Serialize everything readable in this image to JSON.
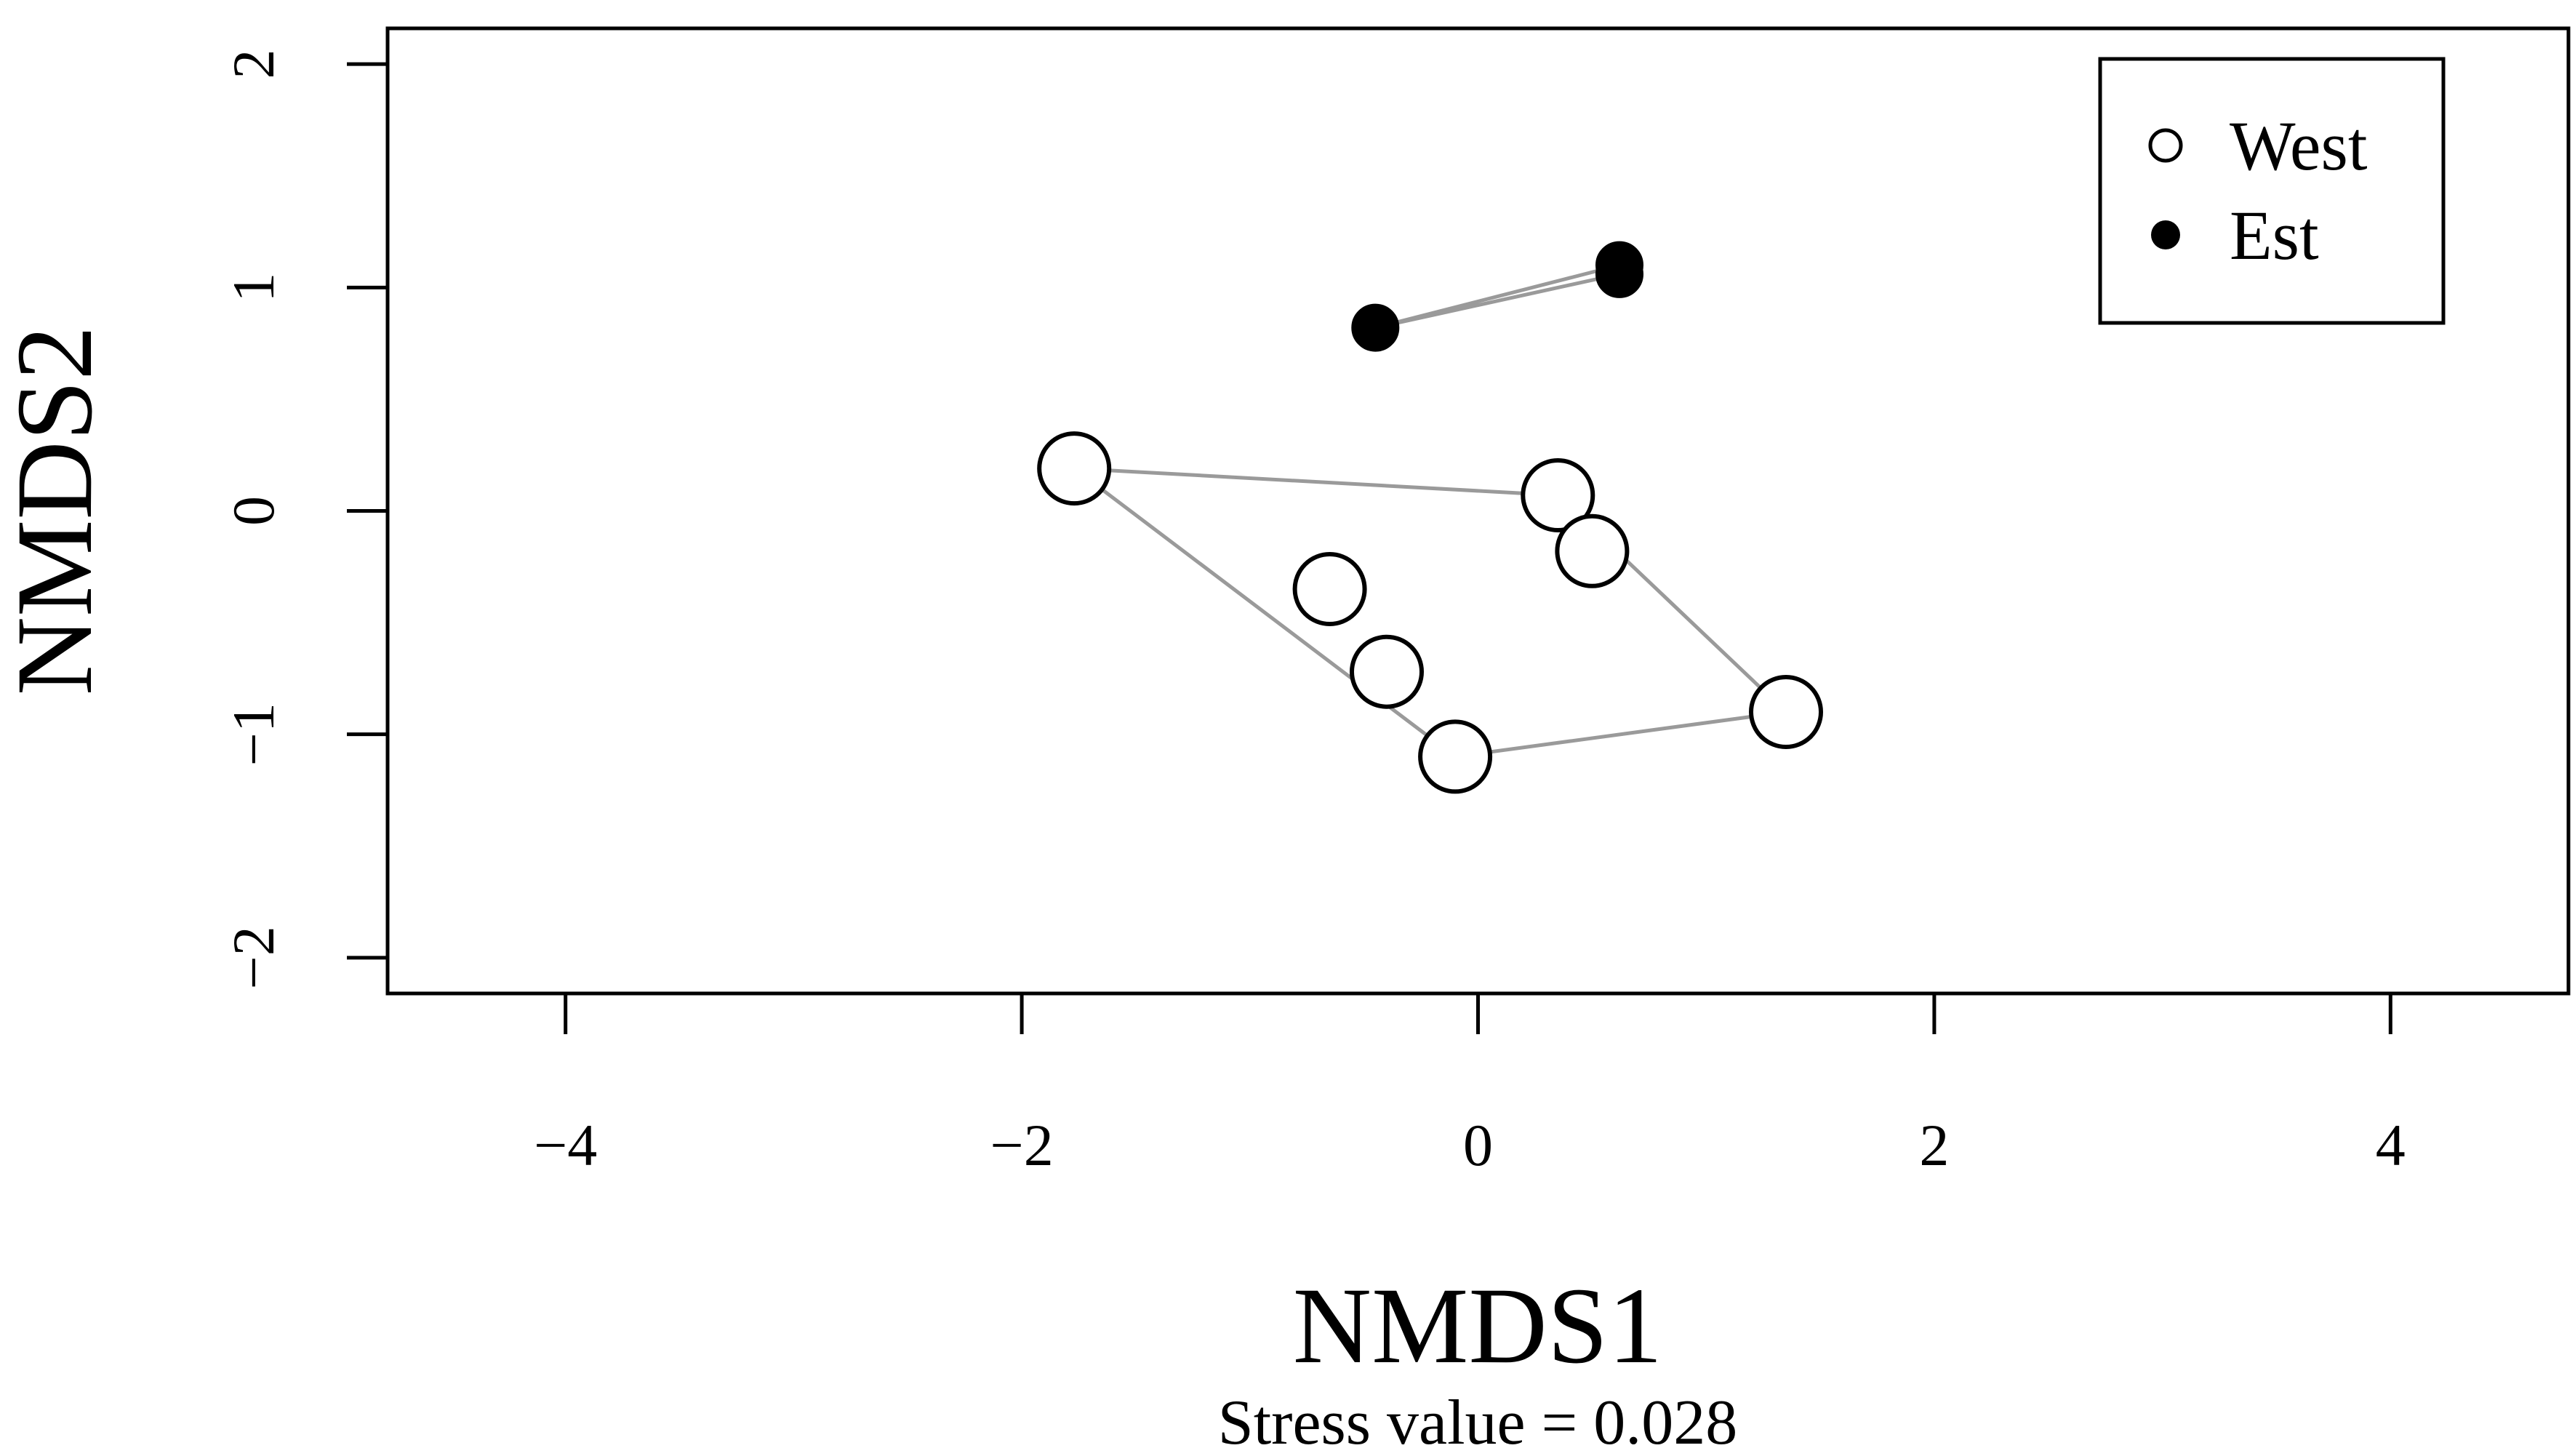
{
  "chart_data": {
    "type": "scatter",
    "xlabel": "NMDS1",
    "ylabel": "NMDS2",
    "subtitle": "Stress value = 0.028",
    "xlim": [
      -4.78,
      4.78
    ],
    "ylim": [
      -2.16,
      2.16
    ],
    "x_ticks": [
      -4,
      -2,
      0,
      2,
      4
    ],
    "y_ticks": [
      -2,
      -1,
      0,
      1,
      2
    ],
    "x_tick_labels": [
      "−4",
      "−2",
      "0",
      "2",
      "4"
    ],
    "y_tick_labels": [
      "−2",
      "−1",
      "0",
      "1",
      "2"
    ],
    "grid": false,
    "legend": {
      "position": "top-right",
      "entries": [
        {
          "label": "West",
          "marker": "open-circle"
        },
        {
          "label": "Est",
          "marker": "filled-circle"
        }
      ]
    },
    "series": [
      {
        "name": "West",
        "marker": "open-circle",
        "points": [
          {
            "x": -1.77,
            "y": 0.19
          },
          {
            "x": 0.35,
            "y": 0.07
          },
          {
            "x": 0.5,
            "y": -0.18
          },
          {
            "x": -0.65,
            "y": -0.35
          },
          {
            "x": -0.4,
            "y": -0.72
          },
          {
            "x": -0.1,
            "y": -1.1
          },
          {
            "x": 1.35,
            "y": -0.9
          }
        ],
        "hull": [
          {
            "x": -1.77,
            "y": 0.19
          },
          {
            "x": 0.35,
            "y": 0.07
          },
          {
            "x": 1.35,
            "y": -0.9
          },
          {
            "x": -0.1,
            "y": -1.1
          }
        ]
      },
      {
        "name": "Est",
        "marker": "filled-circle",
        "points": [
          {
            "x": -0.45,
            "y": 0.82
          },
          {
            "x": 0.62,
            "y": 1.1
          },
          {
            "x": 0.62,
            "y": 1.06
          }
        ],
        "hull": [
          {
            "x": -0.45,
            "y": 0.82
          },
          {
            "x": 0.62,
            "y": 1.1
          },
          {
            "x": 0.62,
            "y": 1.06
          }
        ]
      }
    ],
    "colors": {
      "hull": "#9a9a9a",
      "axis": "#000000",
      "open_fill": "#ffffff",
      "filled_fill": "#000000"
    }
  }
}
